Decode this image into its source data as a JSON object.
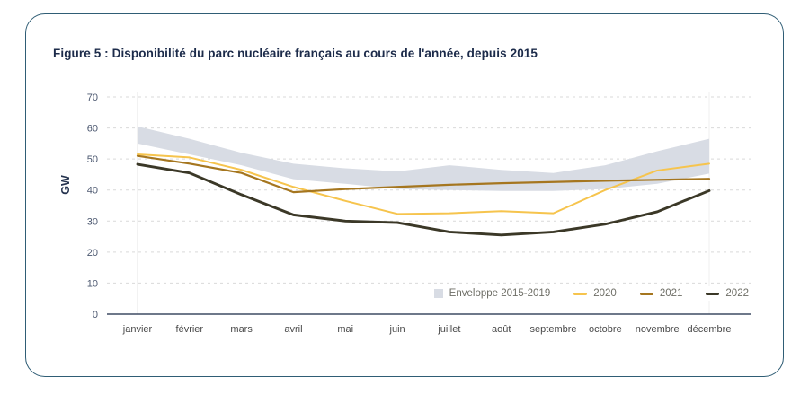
{
  "card": {
    "title": "Figure 5 : Disponibilité du parc nucléaire français au cours de l'année, depuis 2015"
  },
  "chart_data": {
    "type": "line",
    "title": "Figure 5 : Disponibilité du parc nucléaire français au cours de l'année, depuis 2015",
    "xlabel": "",
    "ylabel": "GW",
    "ylim": [
      0,
      70
    ],
    "yticks": [
      0,
      10,
      20,
      30,
      40,
      50,
      60,
      70
    ],
    "grid": "horizontal-dashed",
    "legend_position": "inside-bottom-right",
    "categories": [
      "janvier",
      "février",
      "mars",
      "avril",
      "mai",
      "juin",
      "juillet",
      "août",
      "septembre",
      "octobre",
      "novembre",
      "décembre"
    ],
    "envelope": {
      "name": "Enveloppe 2015-2019",
      "color": "#D8DCE4",
      "top": [
        60.5,
        56.5,
        52.0,
        48.5,
        47.0,
        46.0,
        48.0,
        46.5,
        45.5,
        48.0,
        52.5,
        56.5
      ],
      "bottom": [
        55.0,
        51.5,
        48.0,
        43.5,
        42.0,
        40.3,
        40.0,
        39.7,
        39.7,
        40.3,
        42.0,
        45.3
      ]
    },
    "series": [
      {
        "name": "2020",
        "color": "#F6C44D",
        "width": 2.0,
        "values": [
          51.5,
          50.5,
          46.5,
          41.0,
          36.5,
          32.3,
          32.5,
          33.2,
          32.5,
          40.0,
          46.3,
          48.5
        ]
      },
      {
        "name": "2021",
        "color": "#A5761F",
        "width": 2.2,
        "values": [
          51.0,
          48.5,
          45.5,
          39.3,
          40.3,
          41.0,
          41.7,
          42.2,
          42.6,
          43.0,
          43.3,
          43.6
        ]
      },
      {
        "name": "2022",
        "color": "#3B3827",
        "width": 2.9,
        "values": [
          48.3,
          45.5,
          38.5,
          32.0,
          30.0,
          29.5,
          26.5,
          25.5,
          26.5,
          29.0,
          33.0,
          39.8
        ]
      }
    ],
    "colors": {
      "grid": "#D9D9D9",
      "axis_line": "#3E4C63",
      "tick_text": "#4C5870",
      "month_text": "#4A4A4A",
      "legend_text": "#6E6E66"
    }
  }
}
